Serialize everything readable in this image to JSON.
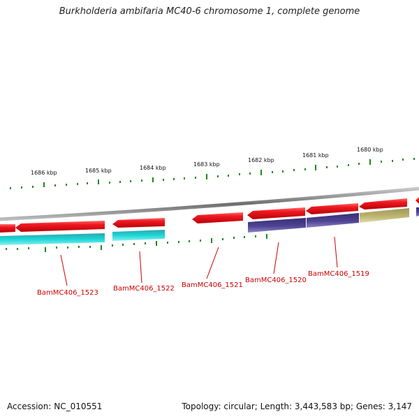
{
  "title": "Burkholderia ambifaria MC40-6 chromosome 1, complete genome",
  "scale_labels": [
    "1686 kbp",
    "1685 kbp",
    "1684 kbp",
    "1683 kbp",
    "1682 kbp",
    "1681 kbp",
    "1680 kbp"
  ],
  "genes": [
    {
      "locus": "BamMC406_1523",
      "strand": "reverse",
      "cog_color": "#12c8cc"
    },
    {
      "locus": "BamMC406_1522",
      "strand": "reverse",
      "cog_color": "#12c8cc"
    },
    {
      "locus": "BamMC406_1521",
      "strand": "reverse",
      "cog_color": null
    },
    {
      "locus": "BamMC406_1520",
      "strand": "reverse",
      "cog_color": "#4b3f8c"
    },
    {
      "locus": "BamMC406_1519",
      "strand": "reverse",
      "cog_color": "#4b3f8c"
    }
  ],
  "colors": {
    "gene": "#e8101a",
    "tick": "#1a8a1a",
    "backbone": "#8a8a8a",
    "label": "#cc0000",
    "cog_olive": "#b8b06a"
  },
  "footer": {
    "accession": "Accession: NC_010551",
    "summary": "Topology: circular; Length: 3,443,583 bp; Genes: 3,147"
  }
}
